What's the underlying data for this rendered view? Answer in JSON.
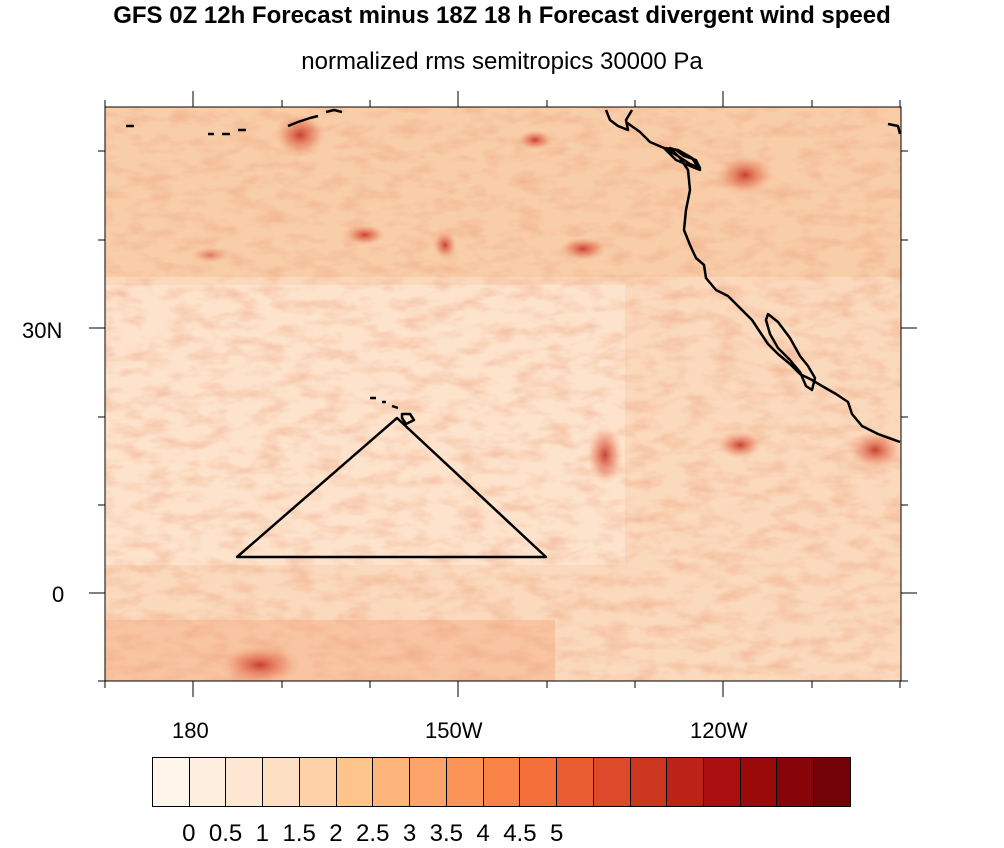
{
  "title": "GFS 0Z 12h Forecast minus 18Z 18 h Forecast divergent wind speed",
  "subtitle": "normalized rms semitropics 30000 Pa",
  "map": {
    "latitude_labels": [
      "30N",
      "0"
    ],
    "longitude_labels": [
      "180",
      "150W",
      "120W"
    ],
    "features": [
      "coastline",
      "hawaii-islands",
      "triangle-outline"
    ]
  },
  "colorbar": {
    "labels": [
      "0",
      "0.5",
      "1",
      "1.5",
      "2",
      "2.5",
      "3",
      "3.5",
      "4",
      "4.5",
      "5"
    ],
    "colors": [
      "#fff5eb",
      "#feeee0",
      "#fee7d2",
      "#fddfc3",
      "#fdd2a8",
      "#fdc48c",
      "#fdb57c",
      "#fda46a",
      "#fd9457",
      "#f98347",
      "#f3703b",
      "#ea5d32",
      "#dd4a29",
      "#cc3520",
      "#bd2218",
      "#ab0f0f",
      "#9b0a0b",
      "#870509",
      "#730306"
    ]
  }
}
